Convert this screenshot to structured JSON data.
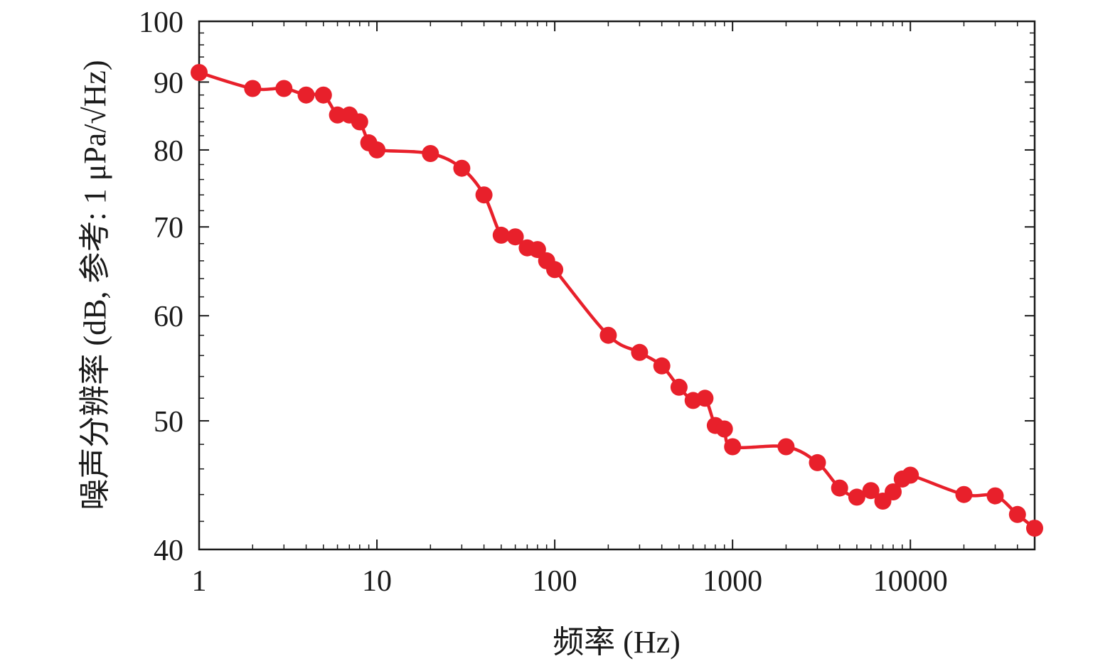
{
  "chart_data": {
    "type": "line",
    "xlabel": "频率 (Hz)",
    "ylabel": "噪声分辨率 (dB, 参考: 1 μPa/√Hz)",
    "x_scale": "log",
    "y_scale": "log",
    "xlim": [
      1,
      50000
    ],
    "ylim": [
      40,
      100
    ],
    "x_ticks": [
      1,
      10,
      100,
      1000,
      10000
    ],
    "x_tick_labels": [
      "1",
      "10",
      "100",
      "1000",
      "10000"
    ],
    "y_ticks": [
      40,
      50,
      60,
      70,
      80,
      90,
      100
    ],
    "y_tick_labels": [
      "40",
      "50",
      "60",
      "70",
      "80",
      "90",
      "100"
    ],
    "grid": false,
    "line_color": "#e8202b",
    "marker_color": "#e8202b",
    "series": [
      {
        "x": [
          1,
          2,
          3,
          4,
          5,
          6,
          7,
          8,
          9,
          10,
          20,
          30,
          40,
          50,
          60,
          70,
          80,
          90,
          100,
          200,
          300,
          400,
          500,
          600,
          700,
          800,
          900,
          1000,
          2000,
          3000,
          4000,
          5000,
          6000,
          7000,
          8000,
          9000,
          10000,
          20000,
          30000,
          40000,
          50000
        ],
        "y": [
          91.5,
          89.0,
          89.0,
          88.0,
          88.0,
          85.0,
          85.0,
          84.0,
          81.0,
          80.0,
          79.5,
          77.5,
          74.0,
          69.0,
          68.8,
          67.5,
          67.3,
          66.0,
          65.0,
          58.0,
          56.3,
          55.0,
          53.0,
          51.8,
          52.0,
          49.6,
          49.3,
          47.8,
          47.8,
          46.5,
          44.5,
          43.8,
          44.3,
          43.5,
          44.2,
          45.2,
          45.5,
          44.0,
          43.9,
          42.5,
          41.5
        ]
      }
    ]
  }
}
